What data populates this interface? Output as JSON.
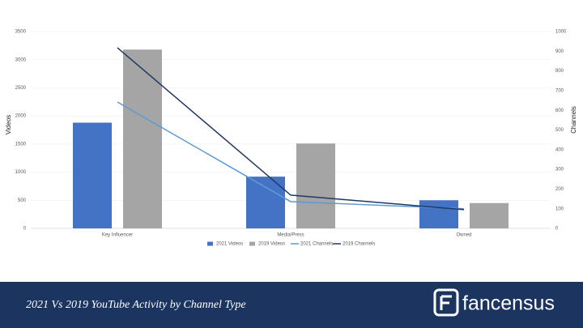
{
  "chart_data": {
    "type": "bar",
    "title": "2021 Vs 2019 YouTube Activity by Channel Type",
    "categories": [
      "Key Influencer",
      "Media/Press",
      "Owned"
    ],
    "series": [
      {
        "name": "2021 Videos",
        "color": "#4472c4",
        "values": [
          1880,
          920,
          500
        ]
      },
      {
        "name": "2019 Videos",
        "color": "#a5a5a5",
        "values": [
          3180,
          1510,
          450
        ]
      },
      {
        "name": "2021 Channels",
        "type": "line",
        "axis": "y2",
        "color": "#5b9bd5",
        "values": [
          642,
          136,
          100
        ]
      },
      {
        "name": "2019 Channels",
        "type": "line",
        "axis": "y2",
        "color": "#1f3864",
        "values": [
          918,
          169,
          95
        ]
      }
    ],
    "ylabel": "Videos",
    "y2label": "Channels",
    "ylim": [
      0,
      3500
    ],
    "yticks": [
      0,
      500,
      1000,
      1500,
      2000,
      2500,
      3000,
      3500
    ],
    "y2lim": [
      0,
      1000
    ],
    "y2ticks": [
      0,
      100,
      200,
      300,
      400,
      500,
      600,
      700,
      800,
      900,
      1000
    ],
    "grid": true,
    "legend": "bottom"
  },
  "brand": "fancensus"
}
